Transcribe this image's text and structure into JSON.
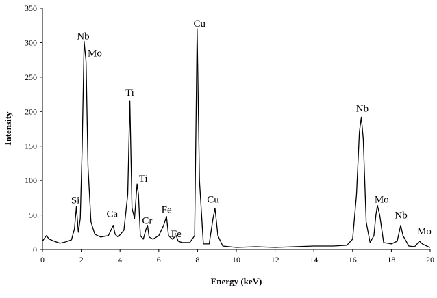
{
  "chart_data": {
    "type": "line",
    "title": "",
    "xlabel": "Energy (keV)",
    "ylabel": "Intensity",
    "xlim": [
      0,
      20
    ],
    "ylim": [
      0,
      350
    ],
    "xticks": [
      "0",
      "2",
      "4",
      "6",
      "8",
      "10",
      "12",
      "14",
      "16",
      "18",
      "20"
    ],
    "yticks": [
      "0",
      "50",
      "100",
      "150",
      "200",
      "250",
      "300",
      "350"
    ],
    "grid": false,
    "legend": "none",
    "line_color": "#000000",
    "series": [
      {
        "x": [
          0,
          0.2,
          0.35,
          0.6,
          0.9,
          1.2,
          1.5,
          1.65,
          1.75,
          1.85,
          1.95,
          2.05,
          2.15,
          2.25,
          2.35,
          2.5,
          2.7,
          3.0,
          3.4,
          3.65,
          3.75,
          3.9,
          4.2,
          4.4,
          4.51,
          4.62,
          4.75,
          4.88,
          4.95,
          5.05,
          5.2,
          5.35,
          5.42,
          5.5,
          5.7,
          6.0,
          6.25,
          6.4,
          6.5,
          6.7,
          6.9,
          7.0,
          7.2,
          7.6,
          7.85,
          7.98,
          8.1,
          8.3,
          8.6,
          8.8,
          8.9,
          9.05,
          9.3,
          10.0,
          11.0,
          12.0,
          13.0,
          14.0,
          15.0,
          15.7,
          16.0,
          16.2,
          16.35,
          16.45,
          16.55,
          16.7,
          16.9,
          17.1,
          17.2,
          17.28,
          17.4,
          17.6,
          18.0,
          18.3,
          18.48,
          18.6,
          18.9,
          19.2,
          19.45,
          19.6,
          19.9,
          20.0
        ],
        "values": [
          12,
          20,
          15,
          12,
          9,
          11,
          14,
          30,
          62,
          25,
          45,
          150,
          302,
          272,
          120,
          40,
          22,
          18,
          20,
          35,
          22,
          18,
          28,
          80,
          215,
          60,
          45,
          95,
          80,
          20,
          15,
          30,
          35,
          18,
          15,
          20,
          35,
          48,
          20,
          15,
          20,
          12,
          10,
          10,
          20,
          320,
          100,
          8,
          8,
          45,
          60,
          20,
          5,
          3,
          4,
          3,
          4,
          5,
          5,
          6,
          15,
          80,
          170,
          192,
          160,
          40,
          10,
          20,
          50,
          64,
          50,
          10,
          8,
          12,
          35,
          20,
          5,
          4,
          12,
          8,
          4,
          3
        ]
      }
    ],
    "annotations": [
      {
        "text": "Nb",
        "x": 2.1,
        "y": 305
      },
      {
        "text": "Mo",
        "x": 2.7,
        "y": 280
      },
      {
        "text": "Ti",
        "x": 4.5,
        "y": 223
      },
      {
        "text": "Cu",
        "x": 8.1,
        "y": 323
      },
      {
        "text": "Si",
        "x": 1.7,
        "y": 67
      },
      {
        "text": "Ca",
        "x": 3.6,
        "y": 47
      },
      {
        "text": "Ti",
        "x": 5.2,
        "y": 98
      },
      {
        "text": "Cr",
        "x": 5.4,
        "y": 37
      },
      {
        "text": "Fe",
        "x": 6.4,
        "y": 53
      },
      {
        "text": "Fe",
        "x": 6.9,
        "y": 18
      },
      {
        "text": "Cu",
        "x": 8.8,
        "y": 68
      },
      {
        "text": "Nb",
        "x": 16.5,
        "y": 200
      },
      {
        "text": "Mo",
        "x": 17.5,
        "y": 68
      },
      {
        "text": "Nb",
        "x": 18.5,
        "y": 45
      },
      {
        "text": "Mo",
        "x": 19.7,
        "y": 22
      }
    ]
  }
}
